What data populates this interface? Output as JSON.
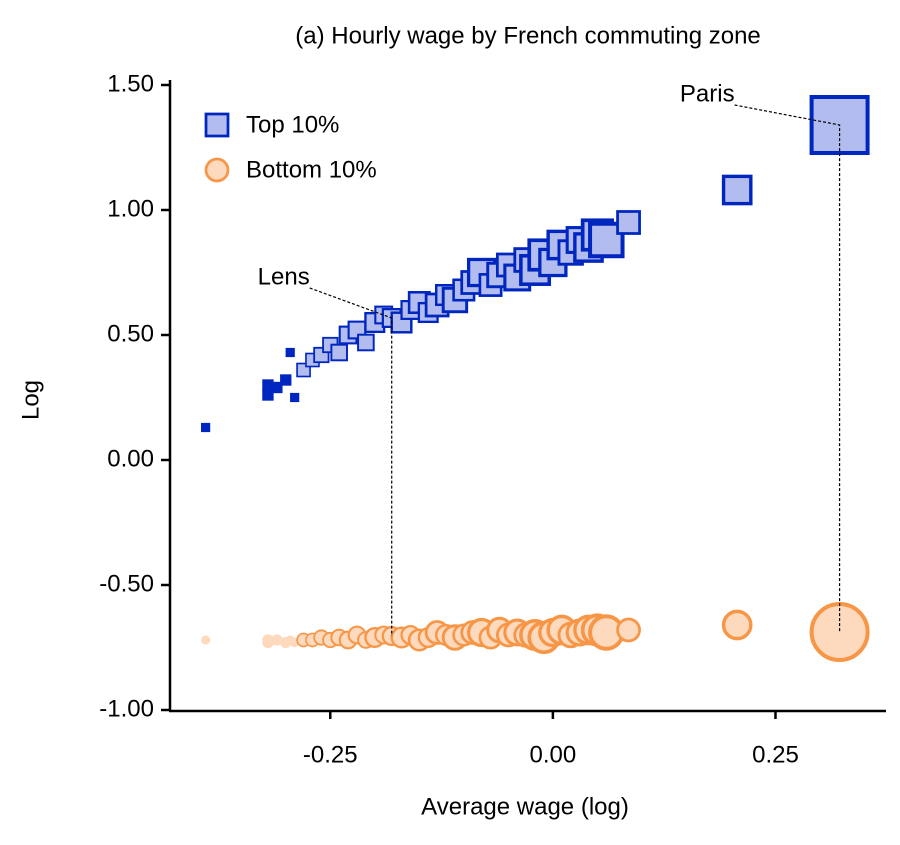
{
  "chart_data": {
    "type": "scatter",
    "title": "(a) Hourly wage by French commuting zone",
    "x_label": "Average wage (log)",
    "y_label": "Log",
    "xlim": [
      -0.43,
      0.373
    ],
    "ylim": [
      -1.0,
      1.5
    ],
    "xticks": [
      -0.25,
      {
        "value": 0,
        "label": "0.00"
      },
      0.25
    ],
    "yticks": [
      {
        "value": -1.0,
        "label": "-1.00"
      },
      {
        "value": -0.5,
        "label": "-0.50"
      },
      {
        "value": 0,
        "label": "0.00"
      },
      {
        "value": 0.5,
        "label": "0.50"
      },
      {
        "value": 1.0,
        "label": "1.00"
      },
      {
        "value": 1.5,
        "label": "1.50"
      }
    ],
    "legend": "upper left",
    "grid": false,
    "series": [
      {
        "name": "Top 10%",
        "marker": "square",
        "color": "#0026c0",
        "fill": "#b3bcee",
        "x": [
          -0.39,
          -0.32,
          -0.32,
          -0.31,
          -0.3,
          -0.295,
          -0.29,
          -0.28,
          -0.27,
          -0.26,
          -0.25,
          -0.24,
          -0.23,
          -0.22,
          -0.21,
          -0.2,
          -0.19,
          -0.181,
          -0.17,
          -0.16,
          -0.15,
          -0.14,
          -0.13,
          -0.12,
          -0.11,
          -0.1,
          -0.09,
          -0.08,
          -0.07,
          -0.06,
          -0.05,
          -0.04,
          -0.03,
          -0.02,
          -0.01,
          0.0,
          0.01,
          0.02,
          0.03,
          0.04,
          0.05,
          0.06,
          0.085,
          0.207,
          0.322
        ],
        "values": [
          0.13,
          0.26,
          0.3,
          0.29,
          0.32,
          0.43,
          0.25,
          0.36,
          0.4,
          0.42,
          0.46,
          0.43,
          0.5,
          0.52,
          0.47,
          0.55,
          0.58,
          0.568,
          0.55,
          0.6,
          0.63,
          0.59,
          0.62,
          0.66,
          0.64,
          0.68,
          0.71,
          0.75,
          0.7,
          0.74,
          0.78,
          0.73,
          0.8,
          0.76,
          0.82,
          0.79,
          0.86,
          0.83,
          0.88,
          0.85,
          0.9,
          0.88,
          0.95,
          1.08,
          1.34
        ],
        "sizes": [
          1,
          2,
          2,
          2,
          2,
          1,
          1,
          3,
          3,
          4,
          4,
          5,
          6,
          6,
          5,
          8,
          6,
          7,
          9,
          7,
          10,
          8,
          12,
          9,
          14,
          10,
          12,
          18,
          11,
          14,
          12,
          16,
          13,
          22,
          24,
          18,
          20,
          14,
          16,
          20,
          24,
          30,
          12,
          20,
          100
        ]
      },
      {
        "name": "Bottom 10%",
        "marker": "circle",
        "color": "#f79646",
        "fill": "#fdd9bd",
        "x": [
          -0.39,
          -0.32,
          -0.32,
          -0.31,
          -0.3,
          -0.295,
          -0.29,
          -0.28,
          -0.27,
          -0.26,
          -0.25,
          -0.24,
          -0.23,
          -0.22,
          -0.21,
          -0.2,
          -0.19,
          -0.181,
          -0.17,
          -0.16,
          -0.15,
          -0.14,
          -0.13,
          -0.12,
          -0.11,
          -0.1,
          -0.09,
          -0.08,
          -0.07,
          -0.06,
          -0.05,
          -0.04,
          -0.03,
          -0.02,
          -0.01,
          0.0,
          0.01,
          0.02,
          0.03,
          0.04,
          0.05,
          0.06,
          0.085,
          0.207,
          0.322
        ],
        "values": [
          -0.72,
          -0.72,
          -0.73,
          -0.72,
          -0.73,
          -0.72,
          -0.73,
          -0.72,
          -0.72,
          -0.71,
          -0.72,
          -0.71,
          -0.72,
          -0.7,
          -0.72,
          -0.71,
          -0.7,
          -0.704,
          -0.71,
          -0.7,
          -0.72,
          -0.71,
          -0.69,
          -0.7,
          -0.71,
          -0.7,
          -0.69,
          -0.69,
          -0.71,
          -0.68,
          -0.7,
          -0.69,
          -0.7,
          -0.7,
          -0.71,
          -0.69,
          -0.68,
          -0.7,
          -0.69,
          -0.68,
          -0.68,
          -0.69,
          -0.68,
          -0.66,
          -0.688
        ],
        "sizes": [
          1,
          2,
          2,
          2,
          2,
          1,
          1,
          3,
          3,
          4,
          4,
          5,
          6,
          6,
          5,
          8,
          6,
          7,
          9,
          7,
          10,
          8,
          12,
          9,
          14,
          10,
          12,
          18,
          11,
          14,
          12,
          16,
          13,
          22,
          24,
          18,
          20,
          14,
          16,
          20,
          24,
          30,
          12,
          20,
          100
        ]
      }
    ],
    "annotations": [
      {
        "text": "Paris",
        "x": 0.322
      },
      {
        "text": "Lens",
        "x": -0.181
      }
    ]
  }
}
